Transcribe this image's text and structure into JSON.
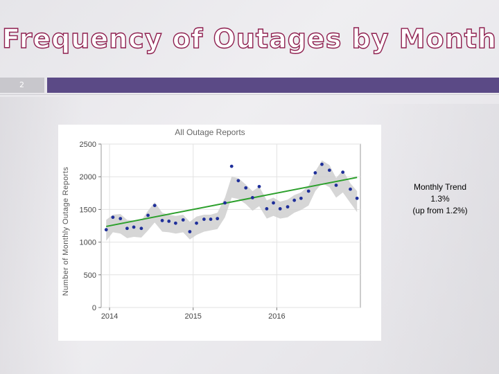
{
  "slide": {
    "title": "Frequency of Outages by Month",
    "slide_number": "2",
    "colors": {
      "title_fill": "#ffffff",
      "title_outline": "#8e1f4f",
      "band": "#5b4a86",
      "band_number_box": "#c8c7cc"
    }
  },
  "annotation": {
    "line1": "Monthly Trend",
    "line2": "1.3%",
    "line3": "(up from 1.2%)"
  },
  "chart_data": {
    "type": "scatter",
    "title": "All Outage Reports",
    "xlabel": "",
    "ylabel": "Number of Monthly Outage Reports",
    "ylim": [
      0,
      2500
    ],
    "xlim": [
      2013.9,
      2017.0
    ],
    "yticks": [
      0,
      500,
      1000,
      1500,
      2000,
      2500
    ],
    "xticks": [
      2014,
      2015,
      2016
    ],
    "grid": true,
    "colors": {
      "points": "#1f2f9a",
      "trend": "#2ca02c",
      "band": "#cfcfcf"
    },
    "series": [
      {
        "kind": "points",
        "x": [
          2013.96,
          2014.04,
          2014.13,
          2014.21,
          2014.29,
          2014.38,
          2014.46,
          2014.54,
          2014.63,
          2014.71,
          2014.79,
          2014.88,
          2014.96,
          2015.04,
          2015.13,
          2015.21,
          2015.29,
          2015.38,
          2015.46,
          2015.54,
          2015.63,
          2015.71,
          2015.79,
          2015.88,
          2015.96,
          2016.04,
          2016.13,
          2016.21,
          2016.29,
          2016.38,
          2016.46,
          2016.54,
          2016.63,
          2016.71,
          2016.79,
          2016.88,
          2016.96
        ],
        "y": [
          1190,
          1380,
          1360,
          1210,
          1230,
          1210,
          1410,
          1560,
          1330,
          1320,
          1290,
          1340,
          1160,
          1290,
          1350,
          1350,
          1360,
          1600,
          2160,
          1940,
          1830,
          1680,
          1850,
          1510,
          1600,
          1510,
          1540,
          1640,
          1670,
          1780,
          2060,
          2190,
          2100,
          1870,
          2070,
          1810,
          1670
        ]
      },
      {
        "kind": "trend",
        "x": [
          2013.96,
          2016.96
        ],
        "y": [
          1240,
          1990
        ]
      },
      {
        "kind": "band_upper",
        "y": [
          1340,
          1420,
          1430,
          1340,
          1330,
          1330,
          1480,
          1610,
          1450,
          1420,
          1400,
          1420,
          1310,
          1390,
          1420,
          1420,
          1450,
          1680,
          2000,
          1980,
          1880,
          1780,
          1850,
          1640,
          1680,
          1620,
          1650,
          1720,
          1760,
          1860,
          2080,
          2250,
          2180,
          1980,
          2100,
          1900,
          1780
        ]
      },
      {
        "kind": "band_lower",
        "y": [
          1020,
          1150,
          1130,
          1060,
          1080,
          1070,
          1180,
          1300,
          1160,
          1150,
          1130,
          1150,
          1040,
          1110,
          1160,
          1180,
          1200,
          1380,
          1680,
          1660,
          1580,
          1480,
          1550,
          1360,
          1400,
          1360,
          1380,
          1450,
          1490,
          1560,
          1780,
          1900,
          1840,
          1680,
          1760,
          1600,
          1460
        ]
      }
    ]
  }
}
